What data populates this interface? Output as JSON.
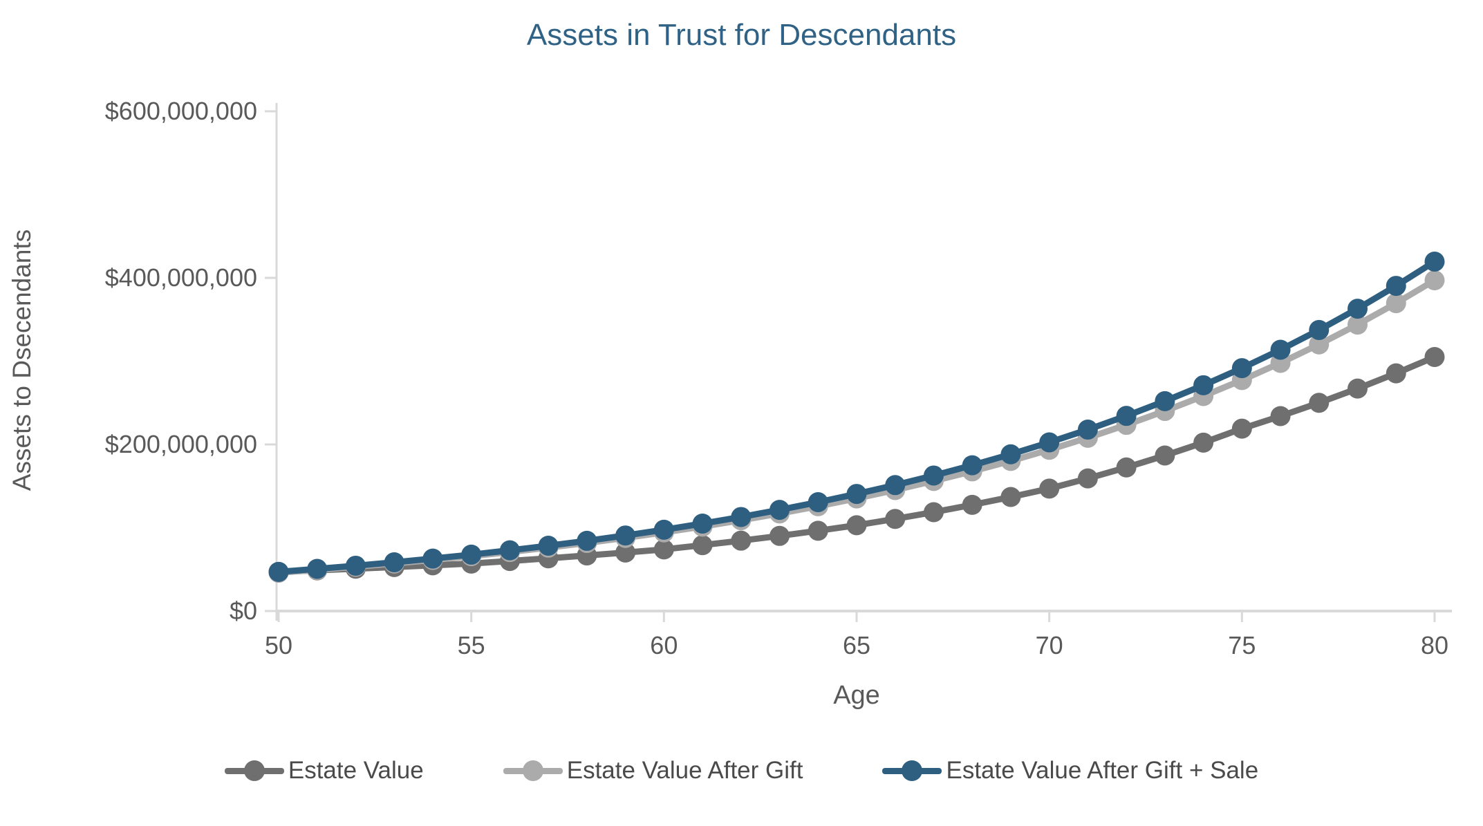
{
  "chart_data": {
    "type": "line",
    "title": "Assets in Trust for Descendants",
    "xlabel": "Age",
    "ylabel": "Assets to Dsecendants",
    "xlim": [
      50,
      80
    ],
    "ylim": [
      0,
      600000000
    ],
    "x_ticks": [
      50,
      55,
      60,
      65,
      70,
      75,
      80
    ],
    "y_ticks": [
      {
        "value": 0,
        "label": "$0"
      },
      {
        "value": 200000000,
        "label": "$200,000,000"
      },
      {
        "value": 400000000,
        "label": "$400,000,000"
      },
      {
        "value": 600000000,
        "label": "$600,000,000"
      }
    ],
    "grid": false,
    "legend_position": "bottom",
    "axis_color": "#d9d9d9",
    "tick_label_color": "#595959",
    "x": [
      50,
      51,
      52,
      53,
      54,
      55,
      56,
      57,
      58,
      59,
      60,
      61,
      62,
      63,
      64,
      65,
      66,
      67,
      68,
      69,
      70,
      71,
      72,
      73,
      74,
      75,
      76,
      77,
      78,
      79,
      80
    ],
    "series": [
      {
        "name": "Estate Value",
        "color": "#6f6f6f",
        "values": [
          47000000,
          48900000,
          50800000,
          52800000,
          54900000,
          57000000,
          60100000,
          63300000,
          66700000,
          70200000,
          74000000,
          79100000,
          84500000,
          90200000,
          96400000,
          103000000,
          110600000,
          118700000,
          127500000,
          136900000,
          147000000,
          159200000,
          172400000,
          186700000,
          202200000,
          219000000,
          234000000,
          250000000,
          267100000,
          285400000,
          305000000
        ]
      },
      {
        "name": "Estate Value After Gift",
        "color": "#ababab",
        "values": [
          46000000,
          49400000,
          53100000,
          57100000,
          61300000,
          65900000,
          70800000,
          76100000,
          81700000,
          87800000,
          94400000,
          101400000,
          109000000,
          117100000,
          125800000,
          135200000,
          145200000,
          156100000,
          167700000,
          180200000,
          193600000,
          208000000,
          223500000,
          240200000,
          258100000,
          277300000,
          297900000,
          320100000,
          343900000,
          369600000,
          397100000
        ]
      },
      {
        "name": "Estate Value After Gift + Sale",
        "color": "#2e5f80",
        "values": [
          47000000,
          50600000,
          54400000,
          58500000,
          63000000,
          67700000,
          72900000,
          78400000,
          84300000,
          90700000,
          97600000,
          105000000,
          112900000,
          121500000,
          130700000,
          140600000,
          151200000,
          162700000,
          175000000,
          188200000,
          202500000,
          217800000,
          234300000,
          252000000,
          271100000,
          291600000,
          313700000,
          337400000,
          363000000,
          390400000,
          419500000
        ]
      }
    ]
  }
}
